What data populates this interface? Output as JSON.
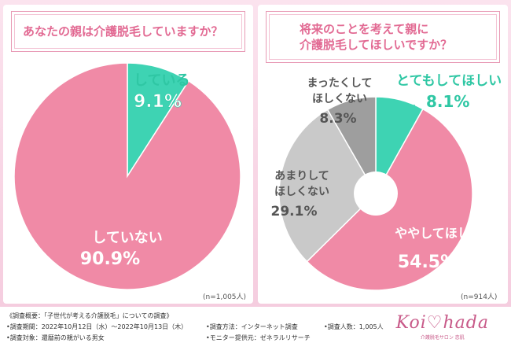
{
  "chart_data": [
    {
      "type": "pie",
      "title": "あなたの親は介護脱毛していますか？",
      "categories": [
        "している",
        "していない"
      ],
      "values": [
        9.1,
        90.9
      ],
      "colors": [
        "#3ed3b3",
        "#f08aa6"
      ],
      "n_label": "(n=1,005人)"
    },
    {
      "type": "pie",
      "title_lines": [
        "将来のことを考えて親に",
        "介護脱毛してほしいですか？"
      ],
      "categories": [
        "とてもしてほしい",
        "ややしてほしい",
        "あまりしてほしくない",
        "まったくしてほしくない"
      ],
      "label_lines": [
        [
          "とてもしてほしい"
        ],
        [
          "ややしてほしい"
        ],
        [
          "あまりして",
          "ほしくない"
        ],
        [
          "まったくして",
          "ほしくない"
        ]
      ],
      "values": [
        8.1,
        54.5,
        29.1,
        8.3
      ],
      "colors": [
        "#3ed3b3",
        "#f08aa6",
        "#c9c9c9",
        "#9e9e9e"
      ],
      "n_label": "(n=914人)"
    }
  ],
  "footer": {
    "survey_summary": "《調査概要：「子世代が考える介護脱毛」についての調査》",
    "survey_period": "•調査期間：2022年10月12日（水）〜2022年10月13日（木）",
    "survey_target": "•調査対象：還暦前の親がいる男女",
    "survey_method": "•調査方法：インターネット調査",
    "survey_count": "•調査人数：1,005人",
    "monitor": "•モニター提供元：ゼネラルリサーチ"
  },
  "logo": {
    "text": "Koi♡hada",
    "sub": "介護脱毛サロン 恋肌"
  }
}
